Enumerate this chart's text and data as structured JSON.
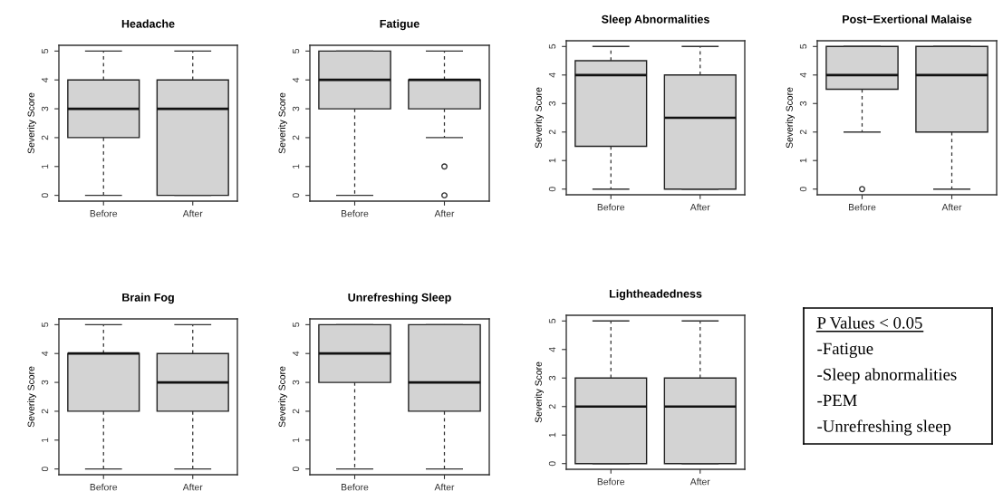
{
  "chart_data": [
    {
      "type": "box",
      "title": "Headache",
      "ylabel": "Severity Score",
      "categories": [
        "Before",
        "After"
      ],
      "ylim": [
        -0.2,
        5.2
      ],
      "yticks": [
        0,
        1,
        2,
        3,
        4,
        5
      ],
      "grid": false,
      "legend": false,
      "series": [
        {
          "color": "#d3d3d3",
          "boxes": [
            {
              "low": 0,
              "q1": 2,
              "median": 3,
              "q3": 4,
              "high": 5
            },
            {
              "low": 0,
              "q1": 0,
              "median": 3,
              "q3": 4,
              "high": 5
            }
          ]
        }
      ]
    },
    {
      "type": "box",
      "title": "Fatigue",
      "ylabel": "Severity Score",
      "categories": [
        "Before",
        "After"
      ],
      "ylim": [
        -0.2,
        5.2
      ],
      "yticks": [
        0,
        1,
        2,
        3,
        4,
        5
      ],
      "grid": false,
      "legend": false,
      "series": [
        {
          "color": "#d3d3d3",
          "boxes": [
            {
              "low": 0,
              "q1": 3,
              "median": 4,
              "q3": 5,
              "high": 5
            },
            {
              "low": 2,
              "q1": 3,
              "median": 4,
              "q3": 4,
              "high": 5,
              "outliers": [
                1,
                0
              ]
            }
          ]
        }
      ]
    },
    {
      "type": "box",
      "title": "Sleep Abnormalities",
      "ylabel": "Severity Score",
      "categories": [
        "Before",
        "After"
      ],
      "ylim": [
        -0.2,
        5.2
      ],
      "yticks": [
        0,
        1,
        2,
        3,
        4,
        5
      ],
      "grid": false,
      "legend": false,
      "series": [
        {
          "color": "#d3d3d3",
          "boxes": [
            {
              "low": 0,
              "q1": 1.5,
              "median": 4,
              "q3": 4.5,
              "high": 5
            },
            {
              "low": 0,
              "q1": 0,
              "median": 2.5,
              "q3": 4,
              "high": 5
            }
          ]
        }
      ]
    },
    {
      "type": "box",
      "title": "Post−Exertional Malaise",
      "ylabel": "Severity Score",
      "categories": [
        "Before",
        "After"
      ],
      "ylim": [
        -0.2,
        5.2
      ],
      "yticks": [
        0,
        1,
        2,
        3,
        4,
        5
      ],
      "grid": false,
      "legend": false,
      "series": [
        {
          "color": "#d3d3d3",
          "boxes": [
            {
              "low": 2,
              "q1": 3.5,
              "median": 4,
              "q3": 5,
              "high": 5,
              "outliers": [
                0
              ]
            },
            {
              "low": 0,
              "q1": 2,
              "median": 4,
              "q3": 5,
              "high": 5
            }
          ]
        }
      ]
    },
    {
      "type": "box",
      "title": "Brain Fog",
      "ylabel": "Severity Score",
      "categories": [
        "Before",
        "After"
      ],
      "ylim": [
        -0.2,
        5.2
      ],
      "yticks": [
        0,
        1,
        2,
        3,
        4,
        5
      ],
      "grid": false,
      "legend": false,
      "series": [
        {
          "color": "#d3d3d3",
          "boxes": [
            {
              "low": 0,
              "q1": 2,
              "median": 4,
              "q3": 4,
              "high": 5
            },
            {
              "low": 0,
              "q1": 2,
              "median": 3,
              "q3": 4,
              "high": 5
            }
          ]
        }
      ]
    },
    {
      "type": "box",
      "title": "Unrefreshing Sleep",
      "ylabel": "Severity Score",
      "categories": [
        "Before",
        "After"
      ],
      "ylim": [
        -0.2,
        5.2
      ],
      "yticks": [
        0,
        1,
        2,
        3,
        4,
        5
      ],
      "grid": false,
      "legend": false,
      "series": [
        {
          "color": "#d3d3d3",
          "boxes": [
            {
              "low": 0,
              "q1": 3,
              "median": 4,
              "q3": 5,
              "high": 5
            },
            {
              "low": 0,
              "q1": 2,
              "median": 3,
              "q3": 5,
              "high": 5
            }
          ]
        }
      ]
    },
    {
      "type": "box",
      "title": "Lightheadedness",
      "ylabel": "Severity Score",
      "categories": [
        "Before",
        "After"
      ],
      "ylim": [
        -0.2,
        5.2
      ],
      "yticks": [
        0,
        1,
        2,
        3,
        4,
        5
      ],
      "grid": false,
      "legend": false,
      "series": [
        {
          "color": "#d3d3d3",
          "boxes": [
            {
              "low": 0,
              "q1": 0,
              "median": 2,
              "q3": 3,
              "high": 5
            },
            {
              "low": 0,
              "q1": 0,
              "median": 2,
              "q3": 3,
              "high": 5
            }
          ]
        }
      ]
    },
    {
      "type": "other",
      "annotations": [
        "P Values < 0.05",
        "-Fatigue",
        "-Sleep abnormalities",
        "-PEM",
        "-Unrefreshing sleep"
      ]
    }
  ]
}
